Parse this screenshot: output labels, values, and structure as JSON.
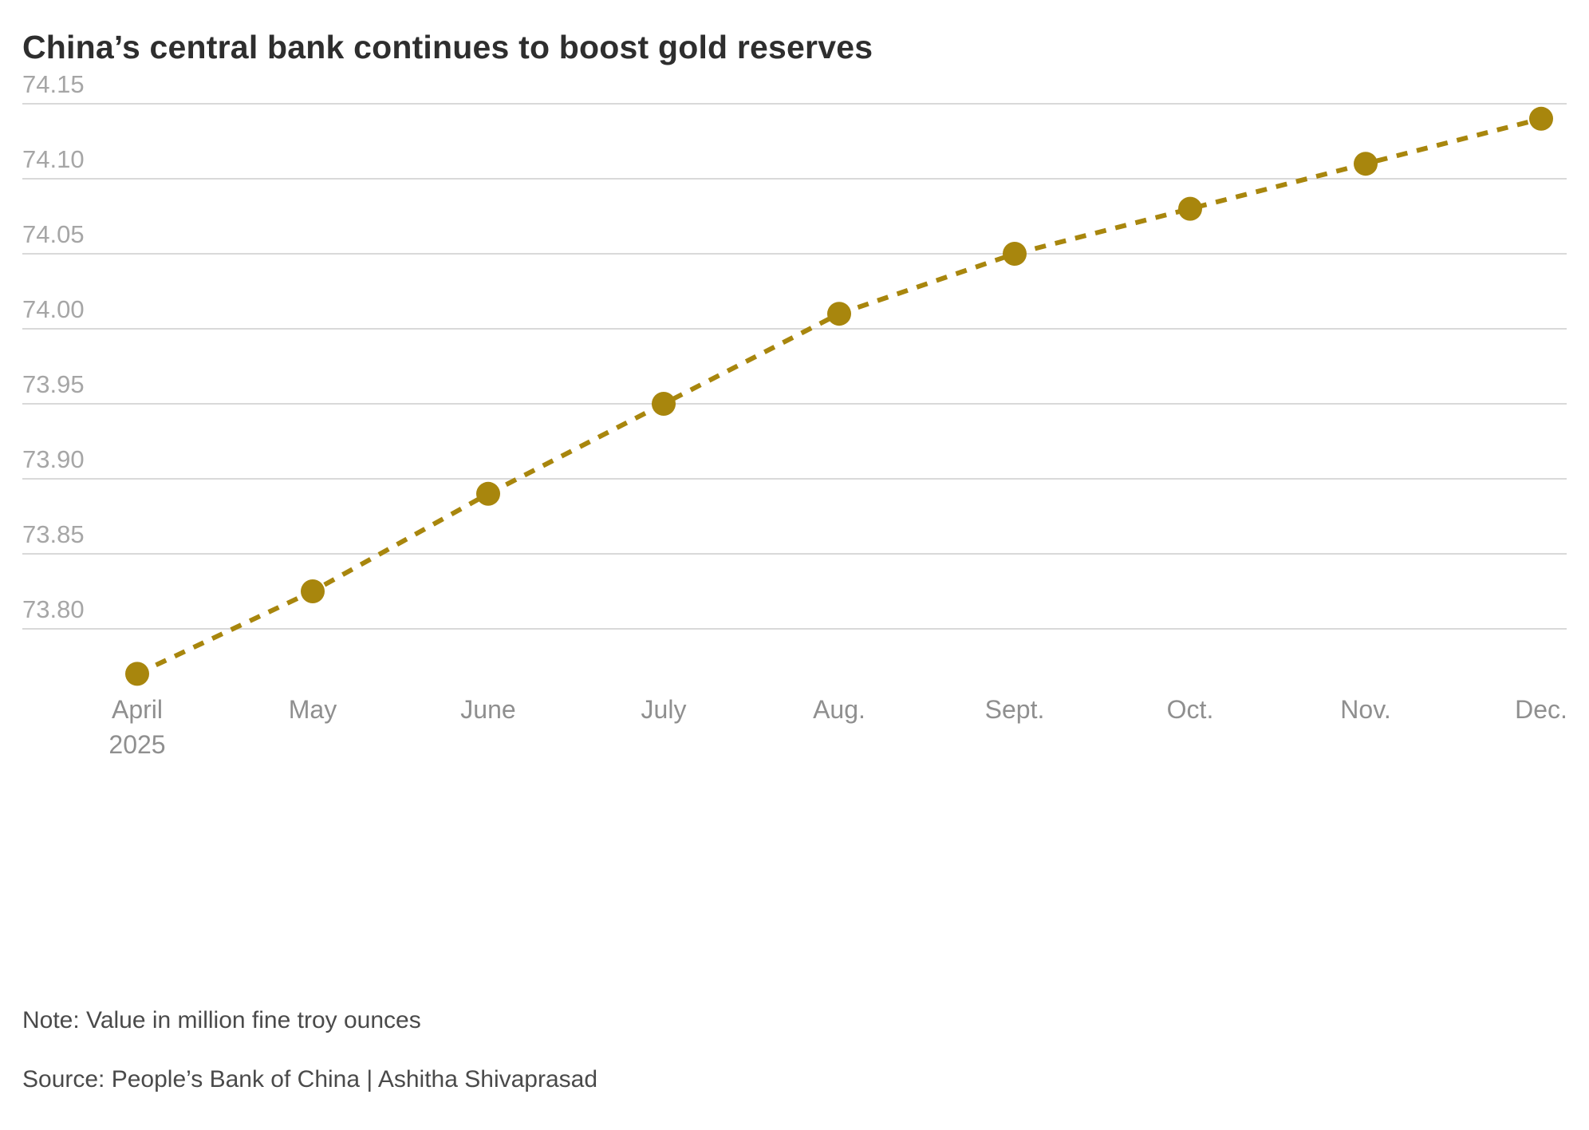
{
  "chart_data": {
    "type": "line",
    "title": "China’s central bank continues to boost gold reserves",
    "x": [
      "April",
      "May",
      "June",
      "July",
      "Aug.",
      "Sept.",
      "Oct.",
      "Nov.",
      "Dec."
    ],
    "x_first_sublabel": "2025",
    "values": [
      73.77,
      73.825,
      73.89,
      73.95,
      74.01,
      74.05,
      74.08,
      74.11,
      74.14
    ],
    "yticks": [
      74.15,
      74.1,
      74.05,
      74.0,
      73.95,
      73.9,
      73.85,
      73.8
    ],
    "ylim": [
      73.75,
      74.17
    ],
    "unit": "million fine troy ounces",
    "grid": true,
    "legend_position": "none",
    "line_style": "dashed",
    "marker": "circle",
    "line_color": "#a8860d",
    "grid_color": "#d9d9d9",
    "ytick_color": "#a6a6a6",
    "xtick_color": "#8f8f8f",
    "note": "Note: Value in million fine troy ounces",
    "source": "Source: People’s Bank of China | Ashitha Shivaprasad"
  }
}
